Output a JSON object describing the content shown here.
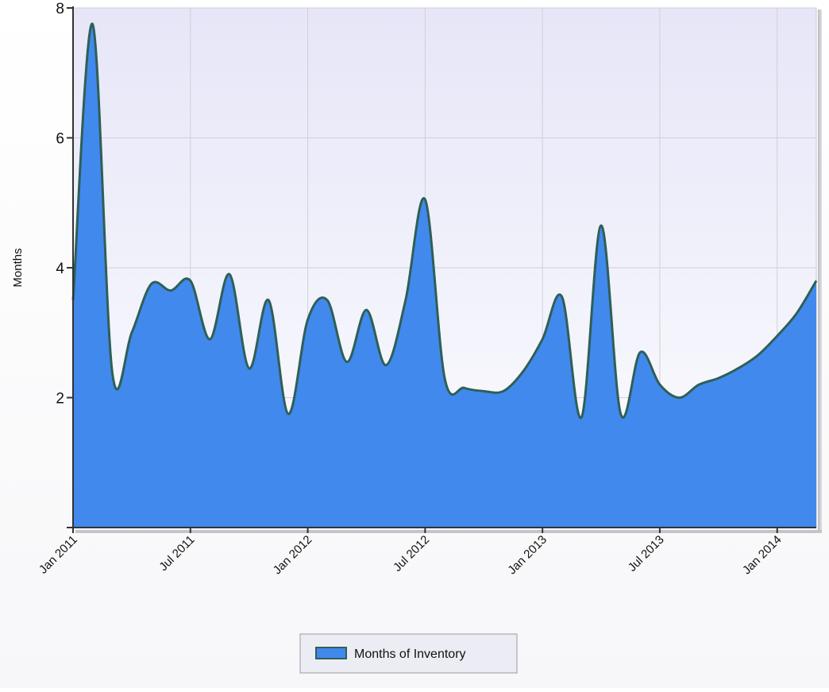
{
  "chart_data": {
    "type": "area",
    "title": "",
    "xlabel": "",
    "ylabel": "Months",
    "x": [
      "2011-01",
      "2011-02",
      "2011-03",
      "2011-04",
      "2011-05",
      "2011-06",
      "2011-07",
      "2011-08",
      "2011-09",
      "2011-10",
      "2011-11",
      "2011-12",
      "2012-01",
      "2012-02",
      "2012-03",
      "2012-04",
      "2012-05",
      "2012-06",
      "2012-07",
      "2012-08",
      "2012-09",
      "2012-10",
      "2012-11",
      "2012-12",
      "2013-01",
      "2013-02",
      "2013-03",
      "2013-04",
      "2013-05",
      "2013-06",
      "2013-07",
      "2013-08",
      "2013-09",
      "2013-10",
      "2013-11",
      "2013-12",
      "2014-01",
      "2014-02",
      "2014-03"
    ],
    "series": [
      {
        "name": "Months of Inventory",
        "values": [
          3.5,
          7.75,
          2.4,
          3.0,
          3.75,
          3.65,
          3.8,
          2.9,
          3.9,
          2.45,
          3.5,
          1.75,
          3.2,
          3.5,
          2.55,
          3.35,
          2.5,
          3.5,
          5.05,
          2.3,
          2.15,
          2.1,
          2.1,
          2.4,
          2.9,
          3.55,
          1.7,
          4.65,
          1.75,
          2.7,
          2.2,
          2.0,
          2.2,
          2.3,
          2.45,
          2.65,
          2.95,
          3.3,
          3.8
        ]
      }
    ],
    "xticks": [
      "Jan 2011",
      "Jul 2011",
      "Jan 2012",
      "Jul 2012",
      "Jan 2013",
      "Jul 2013",
      "Jan 2014"
    ],
    "ylim": [
      0,
      8
    ],
    "yticks": [
      2,
      4,
      6,
      8
    ],
    "grid": true,
    "legend_position": "bottom-center",
    "colors": {
      "fill": "#4189ed",
      "line": "#2f5f56",
      "plot_bg_top": "#e6e6f8",
      "plot_bg_bottom": "#fcfcfe",
      "grid": "#d0d0d6",
      "axis": "#333333"
    }
  }
}
